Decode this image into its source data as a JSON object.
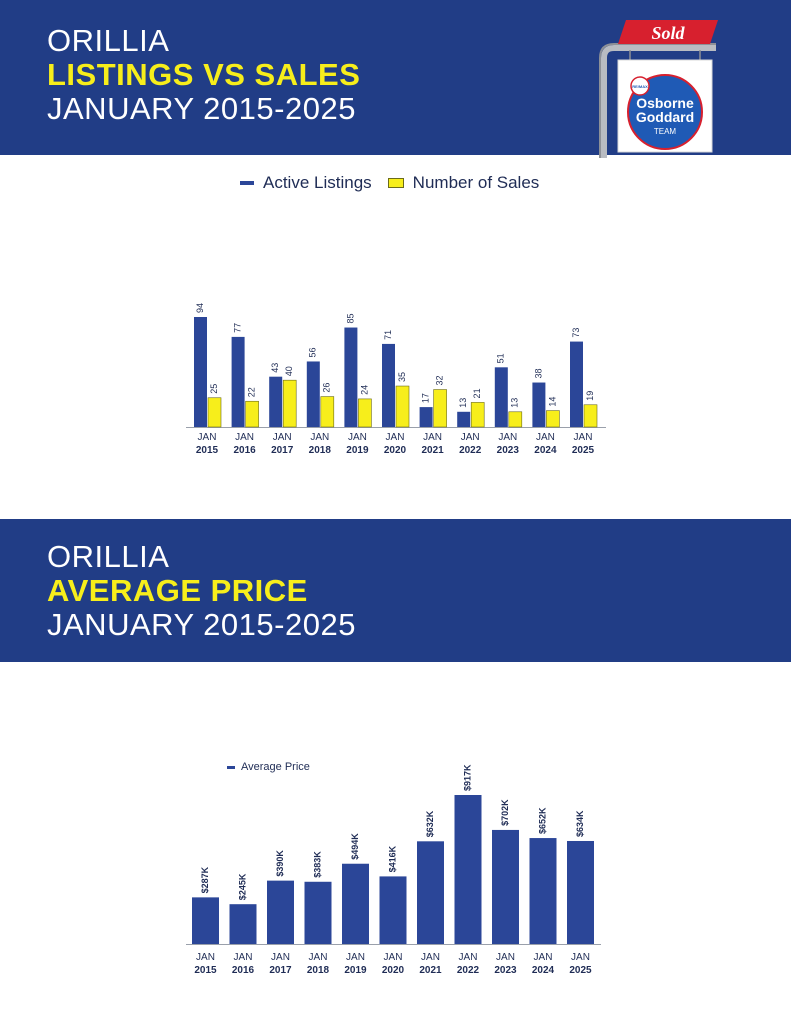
{
  "section1": {
    "title_line1": "ORILLIA",
    "title_line2": "LISTINGS VS SALES",
    "title_line3": "JANUARY 2015-2025"
  },
  "section2": {
    "title_line1": "ORILLIA",
    "title_line2": "AVERAGE PRICE",
    "title_line3": "JANUARY 2015-2025"
  },
  "logo": {
    "sold_text": "Sold",
    "brand_text": "RE/MAX",
    "name_line1": "Osborne",
    "name_line2": "Goddard",
    "name_line3": "TEAM"
  },
  "colors": {
    "banner": "#213d86",
    "accent": "#f7ee1b",
    "bar_blue": "#2b4698",
    "sold_red": "#d7202e"
  },
  "chart_data": [
    {
      "type": "bar",
      "categories": [
        [
          "JAN",
          "2015"
        ],
        [
          "JAN",
          "2016"
        ],
        [
          "JAN",
          "2017"
        ],
        [
          "JAN",
          "2018"
        ],
        [
          "JAN",
          "2019"
        ],
        [
          "JAN",
          "2020"
        ],
        [
          "JAN",
          "2021"
        ],
        [
          "JAN",
          "2022"
        ],
        [
          "JAN",
          "2023"
        ],
        [
          "JAN",
          "2024"
        ],
        [
          "JAN",
          "2025"
        ]
      ],
      "series": [
        {
          "name": "Active Listings",
          "color": "#2b4698",
          "values": [
            94,
            77,
            43,
            56,
            85,
            71,
            17,
            13,
            51,
            38,
            73
          ]
        },
        {
          "name": "Number of Sales",
          "color": "#f7ee1b",
          "values": [
            25,
            22,
            40,
            26,
            24,
            35,
            32,
            21,
            13,
            14,
            19
          ]
        }
      ],
      "ylim": [
        0,
        94
      ],
      "legend_position": "top-center",
      "grid": false
    },
    {
      "type": "bar",
      "categories": [
        [
          "JAN",
          "2015"
        ],
        [
          "JAN",
          "2016"
        ],
        [
          "JAN",
          "2017"
        ],
        [
          "JAN",
          "2018"
        ],
        [
          "JAN",
          "2019"
        ],
        [
          "JAN",
          "2020"
        ],
        [
          "JAN",
          "2021"
        ],
        [
          "JAN",
          "2022"
        ],
        [
          "JAN",
          "2023"
        ],
        [
          "JAN",
          "2024"
        ],
        [
          "JAN",
          "2025"
        ]
      ],
      "series": [
        {
          "name": "Average Price",
          "color": "#2b4698",
          "values": [
            287,
            245,
            390,
            383,
            494,
            416,
            632,
            917,
            702,
            652,
            634
          ],
          "labels": [
            "$287K",
            "$245K",
            "$390K",
            "$383K",
            "$494K",
            "$416K",
            "$632K",
            "$917K",
            "$702K",
            "$652K",
            "$634K"
          ]
        }
      ],
      "ylim": [
        0,
        917
      ],
      "legend_position": "top-left",
      "grid": false
    }
  ]
}
